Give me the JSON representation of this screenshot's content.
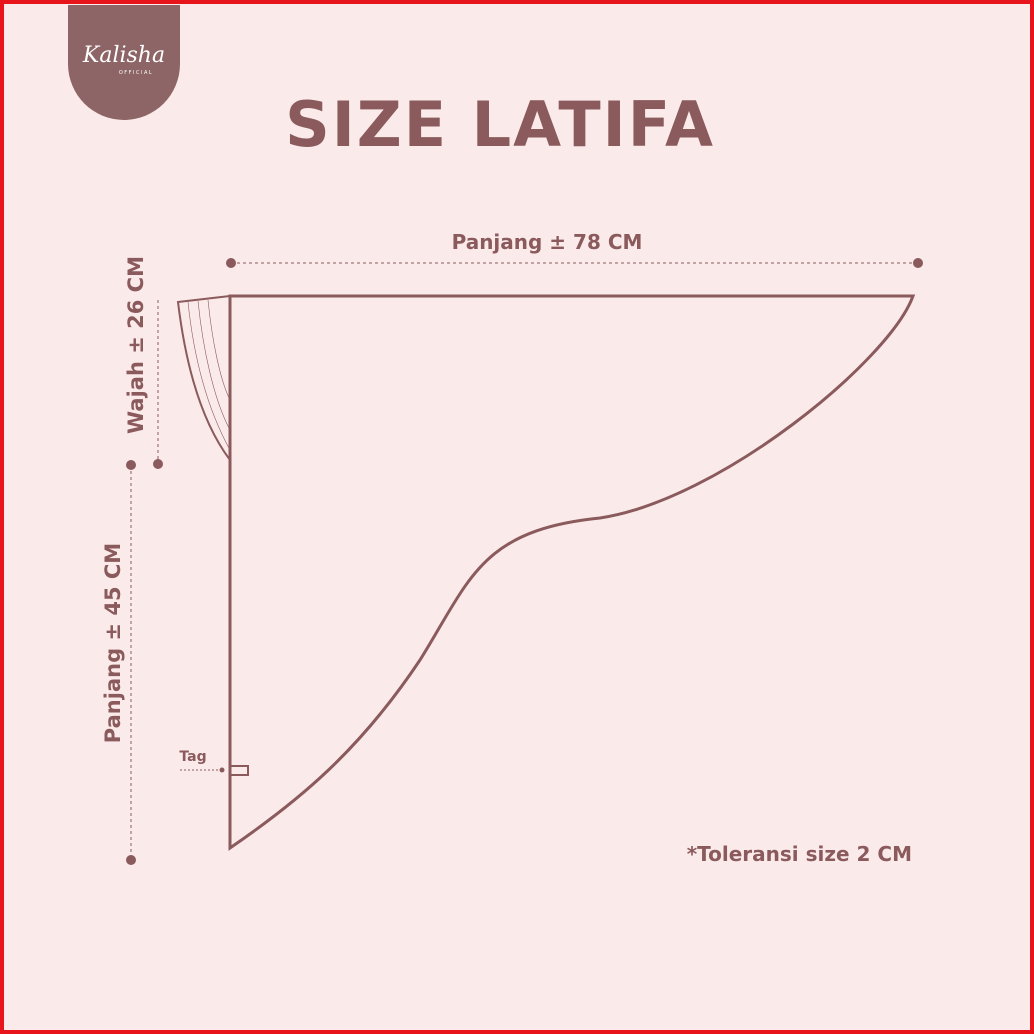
{
  "brand": {
    "name": "Kalisha",
    "tagline": "OFFICIAL"
  },
  "title": "SIZE LATIFA",
  "dimensions": {
    "width": "Panjang ± 78 CM",
    "face": "Wajah ± 26 CM",
    "length": "Panjang ± 45 CM"
  },
  "tag": "Tag",
  "note": "*Toleransi size 2 CM"
}
